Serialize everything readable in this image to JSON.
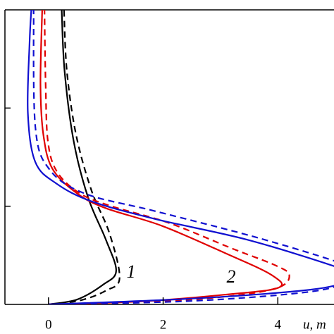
{
  "chart_data": {
    "type": "line",
    "x_label": "u, m",
    "xlim": [
      -0.76,
      4.98
    ],
    "ylim": [
      0,
      3
    ],
    "xticks": [
      0,
      2,
      4
    ],
    "yticks": [
      1,
      2
    ],
    "annotations": [
      "1",
      "2"
    ],
    "series": [
      {
        "color": "#000000",
        "dash": false,
        "x": [
          0,
          0.5,
          0.95,
          1.18,
          1.0,
          0.69,
          0.44,
          0.28,
          0.23
        ],
        "values": [
          0,
          0.05,
          0.2,
          0.34,
          0.66,
          1.09,
          1.66,
          2.38,
          3
        ]
      },
      {
        "color": "#000000",
        "dash": true,
        "x": [
          0,
          0.55,
          1.0,
          1.24,
          1.06,
          0.75,
          0.48,
          0.32,
          0.27
        ],
        "values": [
          0,
          0.04,
          0.14,
          0.27,
          0.73,
          1.16,
          1.73,
          2.38,
          3
        ]
      },
      {
        "color": "#e00000",
        "dash": false,
        "x": [
          0,
          1.61,
          3.09,
          4.01,
          3.89,
          3.09,
          1.98,
          1.0,
          0.5,
          0.07,
          -0.09,
          -0.14,
          -0.11
        ],
        "values": [
          0,
          0.03,
          0.1,
          0.17,
          0.3,
          0.52,
          0.8,
          0.98,
          1.13,
          1.38,
          1.73,
          2.24,
          3
        ]
      },
      {
        "color": "#e00000",
        "dash": true,
        "x": [
          0,
          1.6,
          3.1,
          4.0,
          4.2,
          3.95,
          3.2,
          2.1,
          1.1,
          0.55,
          0.15,
          -0.01,
          -0.05,
          -0.07
        ],
        "values": [
          0,
          0.02,
          0.08,
          0.17,
          0.3,
          0.4,
          0.57,
          0.83,
          1.0,
          1.13,
          1.35,
          1.66,
          2.24,
          3
        ]
      },
      {
        "color": "#1010d0",
        "dash": false,
        "x": [
          0,
          2.2,
          4.04,
          4.98,
          5.3,
          4.98,
          3.46,
          1.86,
          0.75,
          0.14,
          -0.23,
          -0.36,
          -0.33,
          -0.3
        ],
        "values": [
          0,
          0.05,
          0.12,
          0.19,
          0.3,
          0.39,
          0.66,
          0.87,
          1.05,
          1.23,
          1.45,
          1.95,
          2.67,
          3
        ]
      },
      {
        "color": "#1010d0",
        "dash": true,
        "x": [
          0,
          2.3,
          4.1,
          5.0,
          5.4,
          5.0,
          3.58,
          1.86,
          0.63,
          0.01,
          -0.23,
          -0.26
        ],
        "values": [
          0,
          0.03,
          0.1,
          0.18,
          0.33,
          0.44,
          0.69,
          0.95,
          1.13,
          1.38,
          1.81,
          3
        ]
      }
    ]
  }
}
